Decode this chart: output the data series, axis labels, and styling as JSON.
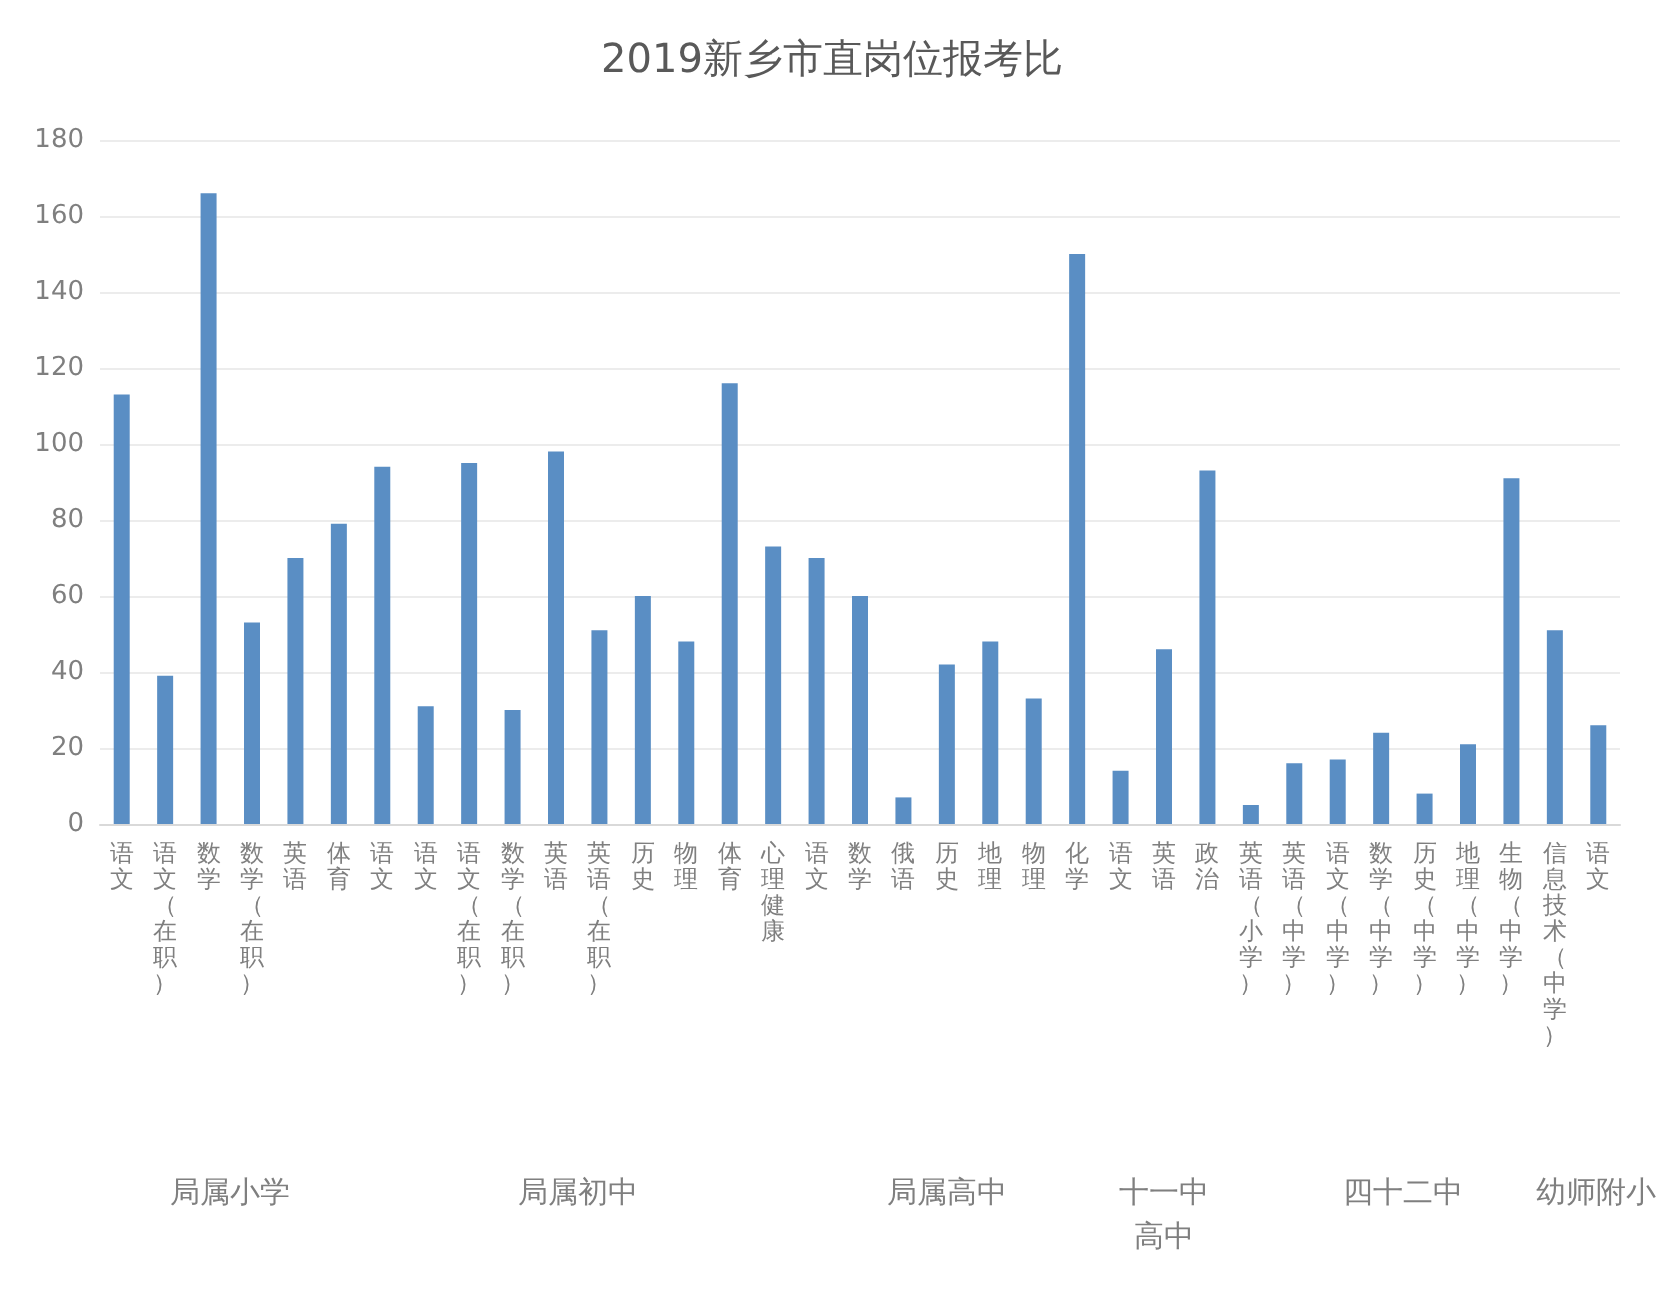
{
  "chart_data": {
    "type": "bar",
    "title": "2019新乡市直岗位报考比",
    "categories": [
      "语文",
      "语文（在职）",
      "数学",
      "数学（在职）",
      "英语",
      "体育",
      "语文",
      "语文",
      "语文（在职）",
      "数学（在职）",
      "英语",
      "英语（在职）",
      "历史",
      "物理",
      "体育",
      "心理健康",
      "语文",
      "数学",
      "俄语",
      "历史",
      "地理",
      "物理",
      "化学",
      "语文",
      "英语",
      "政治",
      "英语（小学）",
      "英语（中学）",
      "语文（中学）",
      "数学（中学）",
      "历史（中学）",
      "地理（中学）",
      "生物（中学）",
      "信息技术（中学）",
      "语文"
    ],
    "values": [
      113,
      39,
      166,
      53,
      70,
      79,
      94,
      31,
      95,
      30,
      98,
      51,
      60,
      48,
      116,
      73,
      70,
      60,
      7,
      42,
      48,
      33,
      150,
      14,
      46,
      93,
      5,
      16,
      17,
      24,
      8,
      21,
      91,
      51,
      26
    ],
    "color": "#5a8ec4",
    "ylim": [
      0,
      180
    ],
    "yticks": [
      0,
      20,
      40,
      60,
      80,
      100,
      120,
      140,
      160,
      180
    ],
    "grid": "y",
    "annotations": [
      "局属小学",
      "局属初中",
      "局属高中",
      "十一中高中",
      "四十二中",
      "幼师附小"
    ]
  }
}
